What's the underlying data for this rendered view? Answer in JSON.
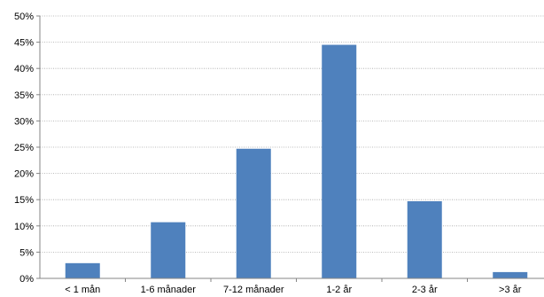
{
  "chart_data": {
    "type": "bar",
    "title": "",
    "xlabel": "",
    "ylabel": "",
    "categories": [
      "< 1 mån",
      "1-6 månader",
      "7-12 månader",
      "1-2 år",
      "2-3 år",
      ">3 år"
    ],
    "values": [
      2.9,
      10.7,
      24.7,
      44.5,
      14.7,
      1.2
    ],
    "ylim": [
      0,
      50
    ],
    "yticks": [
      0,
      5,
      10,
      15,
      20,
      25,
      30,
      35,
      40,
      45,
      50
    ],
    "ytick_labels": [
      "0%",
      "5%",
      "10%",
      "15%",
      "20%",
      "25%",
      "30%",
      "35%",
      "40%",
      "45%",
      "50%"
    ],
    "bar_color": "#4f81bd",
    "grid": true,
    "legend": "none"
  }
}
